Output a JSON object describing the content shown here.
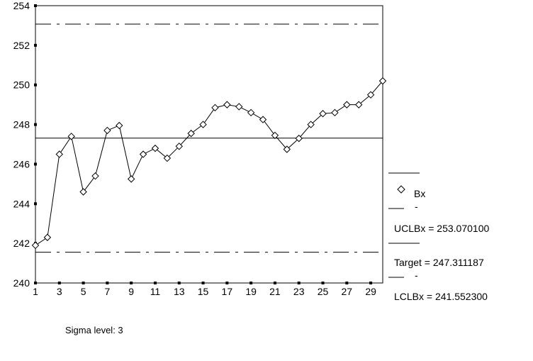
{
  "chart_data": {
    "type": "line",
    "x": [
      1,
      2,
      3,
      4,
      5,
      6,
      7,
      8,
      9,
      10,
      11,
      12,
      13,
      14,
      15,
      16,
      17,
      18,
      19,
      20,
      21,
      22,
      23,
      24,
      25,
      26,
      27,
      28,
      29,
      30
    ],
    "series": [
      {
        "name": "Bx",
        "values": [
          241.9,
          242.3,
          246.5,
          247.4,
          244.6,
          245.4,
          247.7,
          247.95,
          245.25,
          246.5,
          246.8,
          246.3,
          246.9,
          247.55,
          248.0,
          248.85,
          249.0,
          248.9,
          248.6,
          248.25,
          247.45,
          246.75,
          247.3,
          248.0,
          248.55,
          248.6,
          249.0,
          249.0,
          249.5,
          250.2
        ],
        "marker": "diamond"
      }
    ],
    "control_limits": {
      "ucl": 253.0701,
      "target": 247.311187,
      "lcl": 241.5523
    },
    "ylim": [
      240,
      254
    ],
    "xlim": [
      1,
      30
    ],
    "x_ticks": [
      "1",
      "3",
      "5",
      "7",
      "9",
      "11",
      "13",
      "15",
      "17",
      "19",
      "21",
      "23",
      "25",
      "27",
      "29"
    ],
    "y_ticks": [
      "240",
      "242",
      "244",
      "246",
      "248",
      "250",
      "252",
      "254"
    ],
    "grid": false,
    "legend_position": "right",
    "legend": {
      "bx_label": "Bx",
      "ucl_label": "UCLBx = 253.070100",
      "target_label": "Target = 247.311187",
      "lcl_label": "LCLBx = 241.552300",
      "dash_mark": "-"
    },
    "footnote": "Sigma level: 3",
    "colors": {
      "line": "#000000",
      "background": "#ffffff"
    }
  }
}
